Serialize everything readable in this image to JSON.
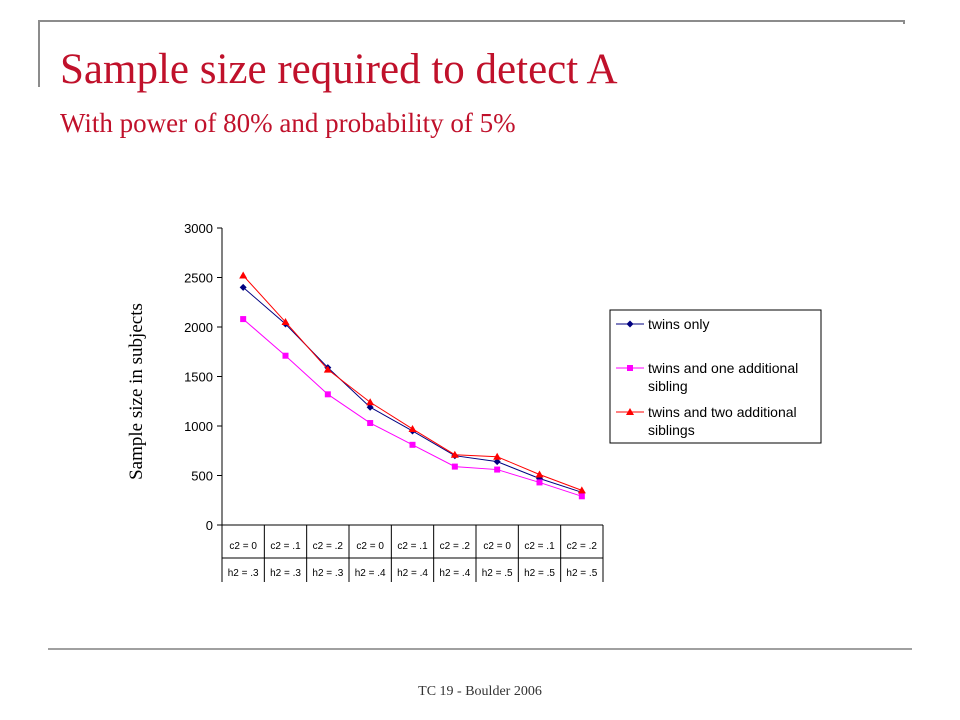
{
  "slide": {
    "title": "Sample size required to detect A",
    "subtitle": "With power of 80% and probability of 5%",
    "footer": "TC 19 - Boulder 2006"
  },
  "chart_data": {
    "type": "line",
    "ylabel": "Sample size in subjects",
    "ylim": [
      0,
      3000
    ],
    "yticks": [
      0,
      500,
      1000,
      1500,
      2000,
      2500,
      3000
    ],
    "categories": [
      [
        "c2 = 0",
        "h2 = .3"
      ],
      [
        "c2 = .1",
        "h2 = .3"
      ],
      [
        "c2 = .2",
        "h2 = .3"
      ],
      [
        "c2 = 0",
        "h2 = .4"
      ],
      [
        "c2 = .1",
        "h2 = .4"
      ],
      [
        "c2 = .2",
        "h2 = .4"
      ],
      [
        "c2 = 0",
        "h2 = .5"
      ],
      [
        "c2 = .1",
        "h2 = .5"
      ],
      [
        "c2 = .2",
        "h2 = .5"
      ]
    ],
    "legend_position": "right",
    "grid": false,
    "series": [
      {
        "name": "twins only",
        "legend_lines": [
          "twins only"
        ],
        "color": "#000080",
        "marker": "diamond",
        "values": [
          2400,
          2030,
          1590,
          1190,
          950,
          700,
          640,
          470,
          330
        ]
      },
      {
        "name": "twins and one additional sibling",
        "legend_lines": [
          "twins and one additional",
          "sibling"
        ],
        "color": "#ff00ff",
        "marker": "square",
        "values": [
          2080,
          1710,
          1320,
          1030,
          810,
          590,
          560,
          430,
          290
        ]
      },
      {
        "name": "twins and two additional siblings",
        "legend_lines": [
          "twins and two additional",
          "siblings"
        ],
        "color": "#ff0000",
        "marker": "triangle",
        "values": [
          2520,
          2050,
          1570,
          1240,
          970,
          710,
          690,
          510,
          350
        ]
      }
    ]
  }
}
